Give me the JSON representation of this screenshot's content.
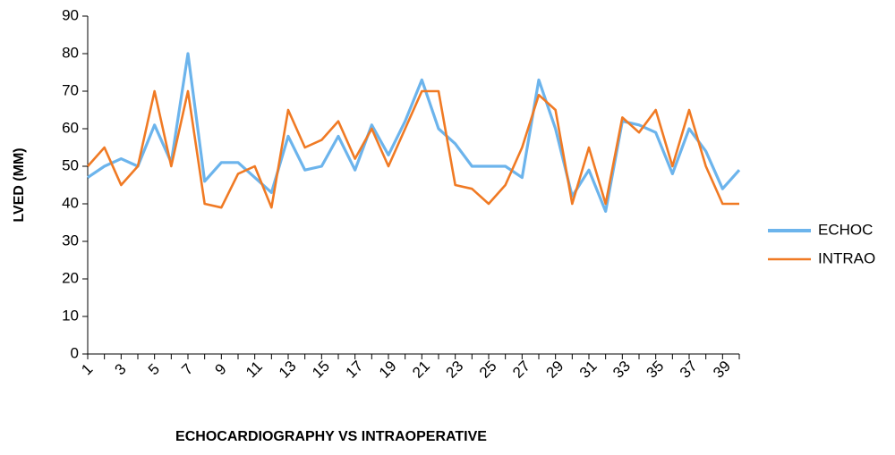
{
  "chart_data": {
    "type": "line",
    "x_label": "ECHOCARDIOGRAPHY VS INTRAOPERATIVE",
    "y_label": "LVED (MM)",
    "categories": [
      "1",
      null,
      "3",
      null,
      "5",
      null,
      "7",
      null,
      "9",
      null,
      "11",
      null,
      "13",
      null,
      "15",
      null,
      "17",
      null,
      "19",
      null,
      "21",
      null,
      "23",
      null,
      "25",
      null,
      "27",
      null,
      "29",
      null,
      "31",
      null,
      "33",
      null,
      "35",
      null,
      "37",
      null,
      "39",
      null
    ],
    "series": [
      {
        "name": "ECHOC",
        "color": "#6cb4ec",
        "values": [
          47,
          50,
          52,
          50,
          61,
          51,
          80,
          46,
          51,
          51,
          47,
          43,
          58,
          49,
          50,
          58,
          49,
          61,
          53,
          62,
          73,
          60,
          56,
          50,
          50,
          50,
          47,
          73,
          60,
          42,
          49,
          38,
          62,
          61,
          59,
          48,
          60,
          54,
          44,
          49
        ]
      },
      {
        "name": "INTRAO",
        "color": "#f07a24",
        "values": [
          50,
          55,
          45,
          50,
          70,
          50,
          70,
          40,
          39,
          48,
          50,
          39,
          65,
          55,
          57,
          62,
          52,
          60,
          50,
          60,
          70,
          70,
          45,
          44,
          40,
          45,
          55,
          69,
          65,
          40,
          55,
          40,
          63,
          59,
          65,
          50,
          65,
          50,
          40,
          40
        ]
      }
    ],
    "ylim": [
      0,
      90
    ],
    "yticks": [
      0,
      10,
      20,
      30,
      40,
      50,
      60,
      70,
      80,
      90
    ],
    "legend": "right"
  }
}
